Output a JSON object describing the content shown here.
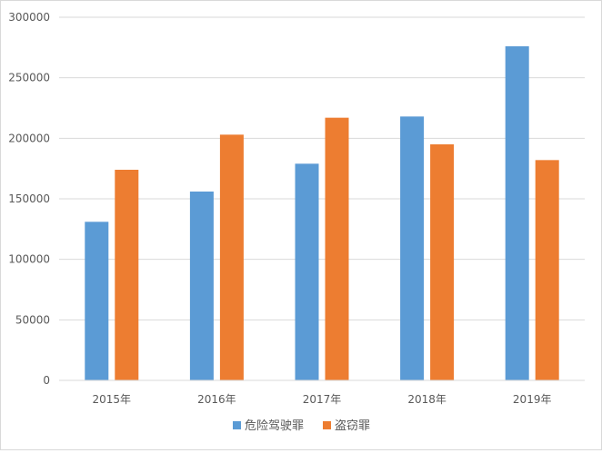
{
  "chart_data": {
    "type": "bar",
    "title": "",
    "xlabel": "",
    "ylabel": "",
    "categories": [
      "2015年",
      "2016年",
      "2017年",
      "2018年",
      "2019年"
    ],
    "series": [
      {
        "name": "危险驾驶罪",
        "color": "#5b9bd5",
        "values": [
          131000,
          156000,
          179000,
          218000,
          276000
        ]
      },
      {
        "name": "盗窃罪",
        "color": "#ed7d31",
        "values": [
          174000,
          203000,
          217000,
          195000,
          182000
        ]
      }
    ],
    "ylim": [
      0,
      300000
    ],
    "yticks": [
      0,
      50000,
      100000,
      150000,
      200000,
      250000,
      300000
    ],
    "ytick_labels": [
      "0",
      "50000",
      "100000",
      "150000",
      "200000",
      "250000",
      "300000"
    ],
    "grid": true,
    "legend_position": "bottom"
  }
}
